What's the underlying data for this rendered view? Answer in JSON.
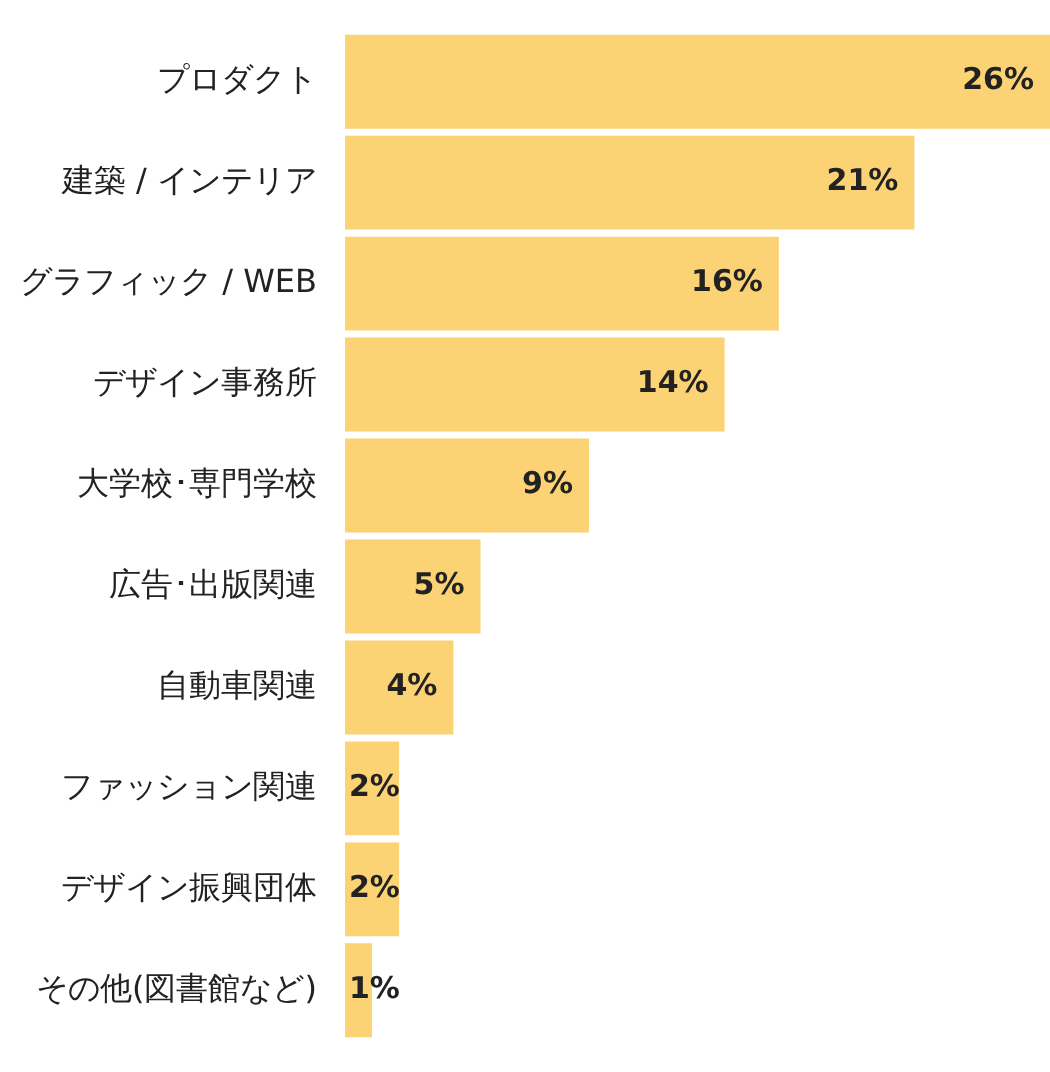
{
  "chart_data": {
    "type": "bar",
    "orientation": "horizontal",
    "categories": [
      "プロダクト",
      "建築 / インテリア",
      "グラフィック / WEB",
      "デザイン事務所",
      "大学校･専門学校",
      "広告･出版関連",
      "自動車関連",
      "ファッション関連",
      "デザイン振興団体",
      "その他(図書館など)"
    ],
    "values": [
      26,
      21,
      16,
      14,
      9,
      5,
      4,
      2,
      2,
      1
    ],
    "color": "#fbd274",
    "value_labels": [
      "26%",
      "21%",
      "16%",
      "14%",
      "9%",
      "5%",
      "4%",
      "2%",
      "2%",
      "1%"
    ],
    "grid": false,
    "legend": false,
    "tick_labels": "y"
  }
}
